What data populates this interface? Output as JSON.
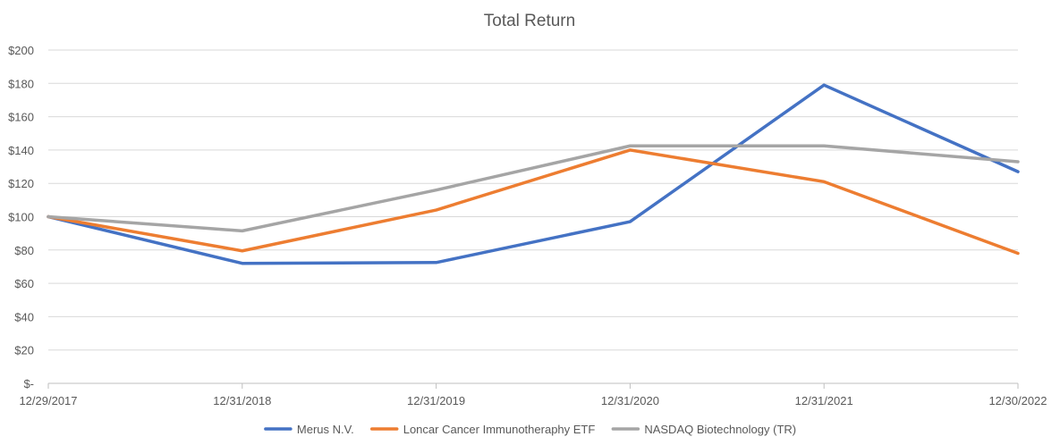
{
  "chart_data": {
    "type": "line",
    "title": "Total Return",
    "xlabel": "",
    "ylabel": "",
    "categories": [
      "12/29/2017",
      "12/31/2018",
      "12/31/2019",
      "12/31/2020",
      "12/31/2021",
      "12/30/2022"
    ],
    "y_ticks": [
      "$-",
      "$20",
      "$40",
      "$60",
      "$80",
      "$100",
      "$120",
      "$140",
      "$160",
      "$180",
      "$200"
    ],
    "ylim": [
      0,
      200
    ],
    "grid": true,
    "legend_position": "bottom",
    "series": [
      {
        "name": "Merus N.V.",
        "color": "#4472C4",
        "values": [
          100,
          72,
          72.5,
          97,
          179,
          127
        ]
      },
      {
        "name": "Loncar Cancer Immunotheraphy ETF",
        "color": "#ED7D31",
        "values": [
          100,
          79.5,
          104,
          140,
          121,
          78
        ]
      },
      {
        "name": "NASDAQ Biotechnology (TR)",
        "color": "#A5A5A5",
        "values": [
          100,
          91.5,
          116,
          142.5,
          142.5,
          133
        ]
      }
    ]
  }
}
